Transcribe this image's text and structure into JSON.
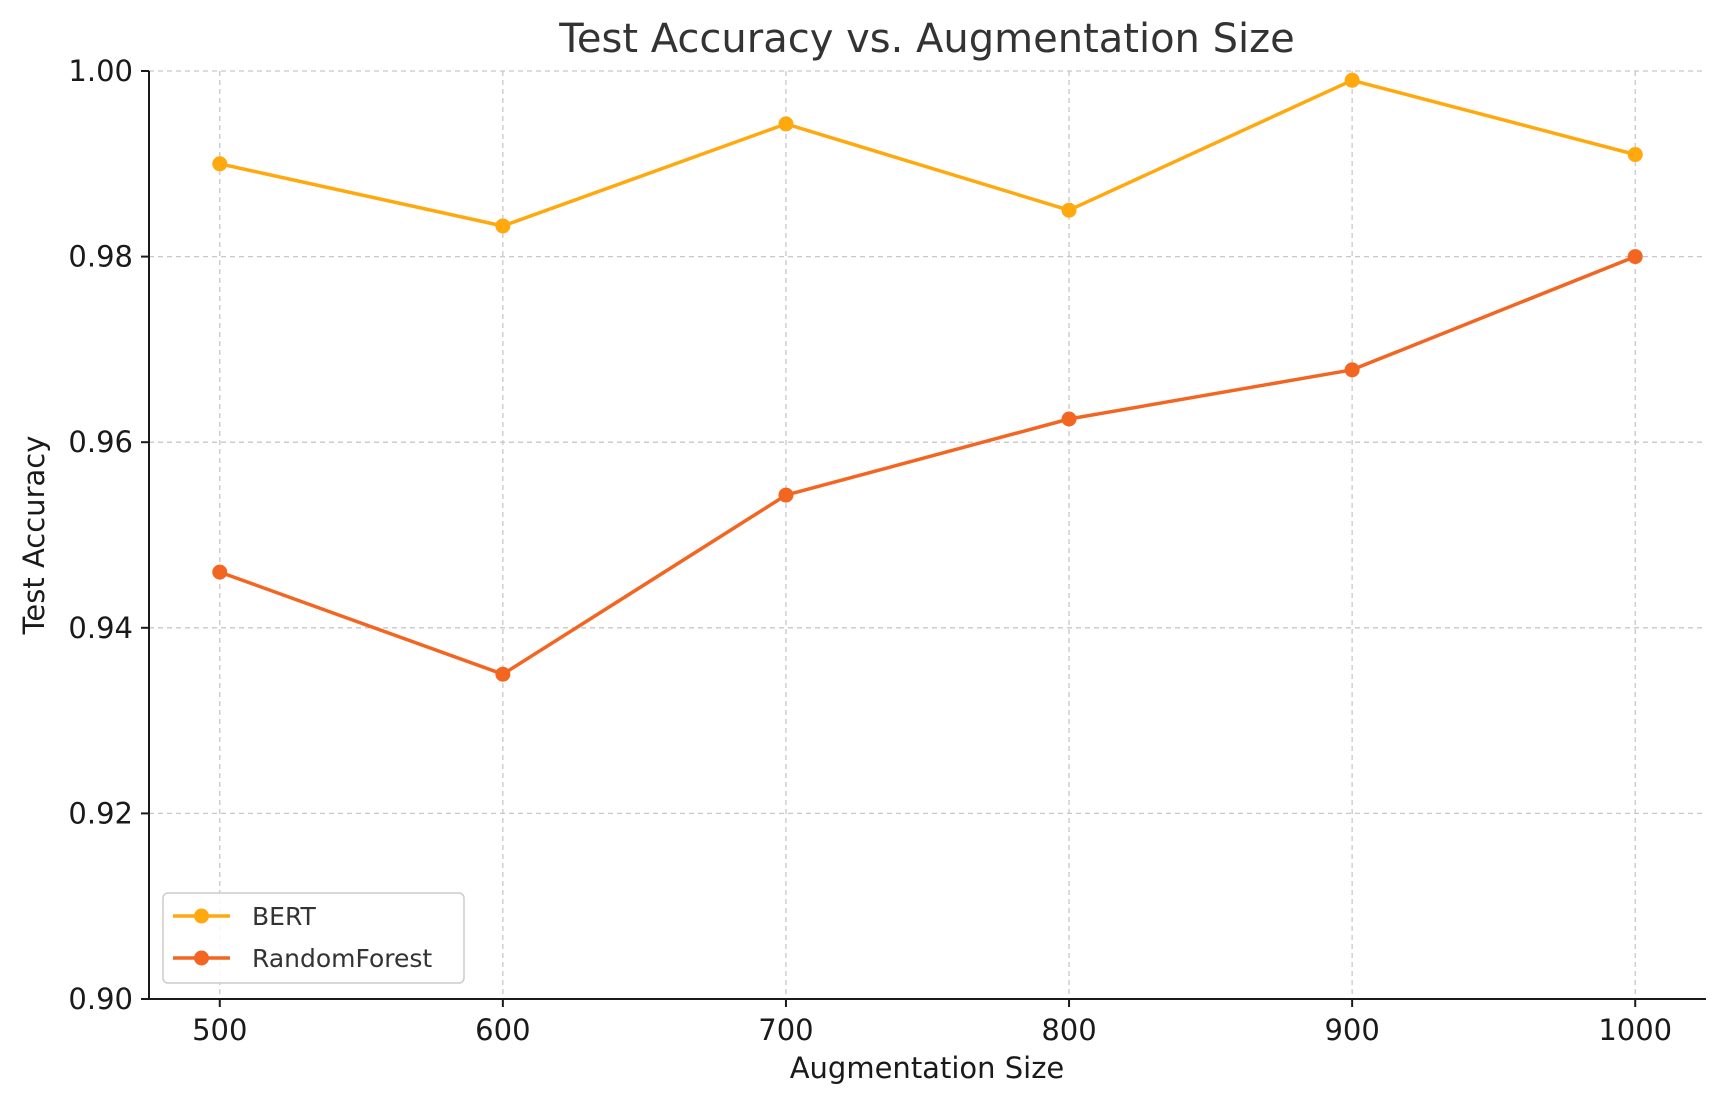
{
  "chart_data": {
    "type": "line",
    "title": "Test Accuracy vs. Augmentation Size",
    "xlabel": "Augmentation Size",
    "ylabel": "Test Accuracy",
    "x": [
      500,
      600,
      700,
      800,
      900,
      1000
    ],
    "xticks": [
      "500",
      "600",
      "700",
      "800",
      "900",
      "1000"
    ],
    "yticks": [
      "0.90",
      "0.92",
      "0.94",
      "0.96",
      "0.98",
      "1.00"
    ],
    "ylim": [
      0.9,
      1.0
    ],
    "xlim": [
      475,
      1025
    ],
    "grid": true,
    "legend_position": "lower-left",
    "series": [
      {
        "name": "BERT",
        "color": "#FFA90E",
        "marker": "circle",
        "values": [
          0.99,
          0.9833,
          0.9943,
          0.985,
          0.999,
          0.991
        ]
      },
      {
        "name": "RandomForest",
        "color": "#F26622",
        "marker": "circle",
        "values": [
          0.946,
          0.935,
          0.9543,
          0.9625,
          0.9678,
          0.98
        ]
      }
    ]
  }
}
